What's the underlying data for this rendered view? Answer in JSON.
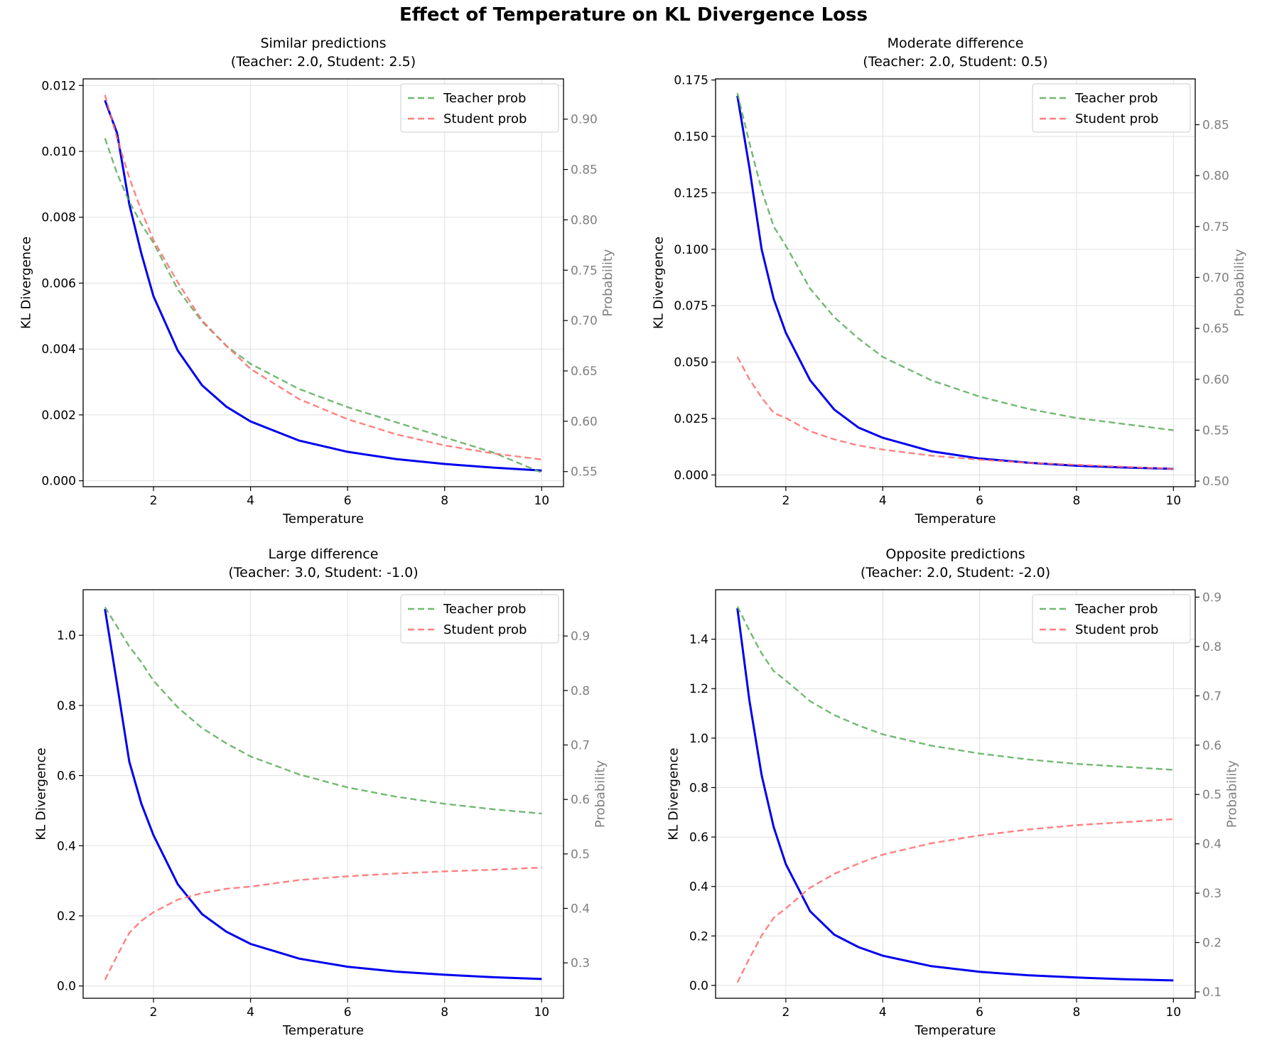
{
  "figure": {
    "suptitle": "Effect of Temperature on KL Divergence Loss"
  },
  "colors": {
    "kl": "#0000ee",
    "teacher": "#59ad59",
    "student": "#ff6b6b",
    "right_axis": "#808080",
    "grid": "#e0e0e0"
  },
  "chart_data": [
    {
      "type": "line",
      "title": "Similar predictions",
      "subtitle": "(Teacher: 2.0, Student: 2.5)",
      "xlabel": "Temperature",
      "ylabel": "KL Divergence",
      "ylabel2": "Probability",
      "xlim": [
        0.55,
        10.45
      ],
      "ylim": [
        -0.00018,
        0.0122
      ],
      "y2lim": [
        0.535,
        0.94
      ],
      "xticks": [
        2,
        4,
        6,
        8,
        10
      ],
      "yticks": [
        0.0,
        0.002,
        0.004,
        0.006,
        0.008,
        0.01,
        0.012
      ],
      "yticks_labels": [
        "0.000",
        "0.002",
        "0.004",
        "0.006",
        "0.008",
        "0.010",
        "0.012"
      ],
      "y2ticks": [
        0.55,
        0.6,
        0.65,
        0.7,
        0.75,
        0.8,
        0.85,
        0.9
      ],
      "y2ticks_labels": [
        "0.55",
        "0.60",
        "0.65",
        "0.70",
        "0.75",
        "0.80",
        "0.85",
        "0.90"
      ],
      "grid": true,
      "legend_position": "upper right",
      "legend_entries": [
        "Teacher prob",
        "Student prob"
      ],
      "series": [
        {
          "axis": "left",
          "style": "solid",
          "x": [
            1,
            1.25,
            1.5,
            1.75,
            2,
            2.5,
            3,
            3.5,
            4,
            5,
            6,
            7,
            8,
            9,
            10
          ],
          "values": [
            0.01155,
            0.01055,
            0.0084,
            0.0069,
            0.0056,
            0.00395,
            0.0029,
            0.00225,
            0.0018,
            0.00122,
            0.00088,
            0.00066,
            0.00051,
            0.0004,
            0.00031
          ]
        },
        {
          "name": "Teacher prob",
          "axis": "right",
          "style": "dashed",
          "x": [
            1,
            1.25,
            1.5,
            1.75,
            2,
            2.5,
            3,
            3.5,
            4,
            5,
            6,
            7,
            8,
            9,
            10
          ],
          "values": [
            0.881,
            0.846,
            0.818,
            0.796,
            0.777,
            0.731,
            0.699,
            0.675,
            0.657,
            0.632,
            0.614,
            0.599,
            0.584,
            0.569,
            0.549
          ]
        },
        {
          "name": "Student prob",
          "axis": "right",
          "style": "dashed",
          "x": [
            1,
            1.25,
            1.5,
            1.75,
            2,
            2.5,
            3,
            3.5,
            4,
            5,
            6,
            7,
            8,
            9,
            10
          ],
          "values": [
            0.924,
            0.881,
            0.842,
            0.809,
            0.78,
            0.738,
            0.7,
            0.675,
            0.652,
            0.622,
            0.602,
            0.587,
            0.576,
            0.568,
            0.562
          ]
        }
      ]
    },
    {
      "type": "line",
      "title": "Moderate difference",
      "subtitle": "(Teacher: 2.0, Student: 0.5)",
      "xlabel": "Temperature",
      "ylabel": "KL Divergence",
      "ylabel2": "Probability",
      "xlim": [
        0.55,
        10.45
      ],
      "ylim": [
        -0.0052,
        0.1755
      ],
      "y2lim": [
        0.4945,
        0.895
      ],
      "xticks": [
        2,
        4,
        6,
        8,
        10
      ],
      "yticks": [
        0.0,
        0.025,
        0.05,
        0.075,
        0.1,
        0.125,
        0.15,
        0.175
      ],
      "yticks_labels": [
        "0.000",
        "0.025",
        "0.050",
        "0.075",
        "0.100",
        "0.125",
        "0.150",
        "0.175"
      ],
      "y2ticks": [
        0.5,
        0.55,
        0.6,
        0.65,
        0.7,
        0.75,
        0.8,
        0.85
      ],
      "y2ticks_labels": [
        "0.50",
        "0.55",
        "0.60",
        "0.65",
        "0.70",
        "0.75",
        "0.80",
        "0.85"
      ],
      "grid": true,
      "legend_position": "upper right",
      "legend_entries": [
        "Teacher prob",
        "Student prob"
      ],
      "series": [
        {
          "axis": "left",
          "style": "solid",
          "x": [
            1,
            1.25,
            1.5,
            1.75,
            2,
            2.5,
            3,
            3.5,
            4,
            5,
            6,
            7,
            8,
            9,
            10
          ],
          "values": [
            0.168,
            0.136,
            0.1,
            0.078,
            0.063,
            0.042,
            0.029,
            0.021,
            0.0165,
            0.0105,
            0.0073,
            0.0054,
            0.0041,
            0.0033,
            0.0027
          ]
        },
        {
          "name": "Teacher prob",
          "axis": "right",
          "style": "dashed",
          "x": [
            1,
            1.25,
            1.5,
            1.75,
            2,
            2.5,
            3,
            3.5,
            4,
            5,
            6,
            7,
            8,
            9,
            10
          ],
          "values": [
            0.881,
            0.832,
            0.786,
            0.75,
            0.731,
            0.689,
            0.661,
            0.64,
            0.622,
            0.599,
            0.583,
            0.571,
            0.562,
            0.556,
            0.55
          ]
        },
        {
          "name": "Student prob",
          "axis": "right",
          "style": "dashed",
          "x": [
            1,
            1.25,
            1.5,
            1.75,
            2,
            2.5,
            3,
            3.5,
            4,
            5,
            6,
            7,
            8,
            9,
            10
          ],
          "values": [
            0.622,
            0.6,
            0.582,
            0.567,
            0.562,
            0.549,
            0.541,
            0.535,
            0.531,
            0.525,
            0.521,
            0.518,
            0.516,
            0.514,
            0.512
          ]
        }
      ]
    },
    {
      "type": "line",
      "title": "Large difference",
      "subtitle": "(Teacher: 3.0, Student: -1.0)",
      "xlabel": "Temperature",
      "ylabel": "KL Divergence",
      "ylabel2": "Probability",
      "xlim": [
        0.55,
        10.45
      ],
      "ylim": [
        -0.035,
        1.13
      ],
      "y2lim": [
        0.235,
        0.985
      ],
      "xticks": [
        2,
        4,
        6,
        8,
        10
      ],
      "yticks": [
        0.0,
        0.2,
        0.4,
        0.6,
        0.8,
        1.0
      ],
      "yticks_labels": [
        "0.0",
        "0.2",
        "0.4",
        "0.6",
        "0.8",
        "1.0"
      ],
      "y2ticks": [
        0.3,
        0.4,
        0.5,
        0.6,
        0.7,
        0.8,
        0.9
      ],
      "y2ticks_labels": [
        "0.3",
        "0.4",
        "0.5",
        "0.6",
        "0.7",
        "0.8",
        "0.9"
      ],
      "grid": true,
      "legend_position": "upper right",
      "legend_entries": [
        "Teacher prob",
        "Student prob"
      ],
      "series": [
        {
          "axis": "left",
          "style": "solid",
          "x": [
            1,
            1.25,
            1.5,
            1.75,
            2,
            2.5,
            3,
            3.5,
            4,
            5,
            6,
            7,
            8,
            9,
            10
          ],
          "values": [
            1.075,
            0.86,
            0.64,
            0.52,
            0.43,
            0.29,
            0.205,
            0.155,
            0.12,
            0.078,
            0.055,
            0.041,
            0.032,
            0.025,
            0.02
          ]
        },
        {
          "name": "Teacher prob",
          "axis": "right",
          "style": "dashed",
          "x": [
            1,
            1.25,
            1.5,
            1.75,
            2,
            2.5,
            3,
            3.5,
            4,
            5,
            6,
            7,
            8,
            9,
            10
          ],
          "values": [
            0.953,
            0.917,
            0.881,
            0.852,
            0.818,
            0.769,
            0.731,
            0.703,
            0.679,
            0.646,
            0.622,
            0.605,
            0.592,
            0.582,
            0.574
          ]
        },
        {
          "name": "Student prob",
          "axis": "right",
          "style": "dashed",
          "x": [
            1,
            1.25,
            1.5,
            1.75,
            2,
            2.5,
            3,
            3.5,
            4,
            5,
            6,
            7,
            8,
            9,
            10
          ],
          "values": [
            0.269,
            0.313,
            0.355,
            0.377,
            0.393,
            0.416,
            0.428,
            0.436,
            0.44,
            0.452,
            0.459,
            0.464,
            0.468,
            0.471,
            0.475
          ]
        }
      ]
    },
    {
      "type": "line",
      "title": "Opposite predictions",
      "subtitle": "(Teacher: 2.0, Student: -2.0)",
      "xlabel": "Temperature",
      "ylabel": "KL Divergence",
      "ylabel2": "Probability",
      "xlim": [
        0.55,
        10.45
      ],
      "ylim": [
        -0.052,
        1.6
      ],
      "y2lim": [
        0.087,
        0.915
      ],
      "xticks": [
        2,
        4,
        6,
        8,
        10
      ],
      "yticks": [
        0.0,
        0.2,
        0.4,
        0.6,
        0.8,
        1.0,
        1.2,
        1.4
      ],
      "yticks_labels": [
        "0.0",
        "0.2",
        "0.4",
        "0.6",
        "0.8",
        "1.0",
        "1.2",
        "1.4"
      ],
      "y2ticks": [
        0.1,
        0.2,
        0.3,
        0.4,
        0.5,
        0.6,
        0.7,
        0.8,
        0.9
      ],
      "y2ticks_labels": [
        "0.1",
        "0.2",
        "0.3",
        "0.4",
        "0.5",
        "0.6",
        "0.7",
        "0.8",
        "0.9"
      ],
      "grid": true,
      "legend_position": "upper right",
      "legend_entries": [
        "Teacher prob",
        "Student prob"
      ],
      "series": [
        {
          "axis": "left",
          "style": "solid",
          "x": [
            1,
            1.25,
            1.5,
            1.75,
            2,
            2.5,
            3,
            3.5,
            4,
            5,
            6,
            7,
            8,
            9,
            10
          ],
          "values": [
            1.525,
            1.15,
            0.85,
            0.64,
            0.49,
            0.3,
            0.205,
            0.155,
            0.12,
            0.078,
            0.055,
            0.041,
            0.032,
            0.025,
            0.02
          ]
        },
        {
          "name": "Teacher prob",
          "axis": "right",
          "style": "dashed",
          "x": [
            1,
            1.25,
            1.5,
            1.75,
            2,
            2.5,
            3,
            3.5,
            4,
            5,
            6,
            7,
            8,
            9,
            10
          ],
          "values": [
            0.881,
            0.832,
            0.786,
            0.75,
            0.731,
            0.689,
            0.661,
            0.64,
            0.622,
            0.599,
            0.583,
            0.571,
            0.562,
            0.556,
            0.55
          ]
        },
        {
          "name": "Student prob",
          "axis": "right",
          "style": "dashed",
          "x": [
            1,
            1.25,
            1.5,
            1.75,
            2,
            2.5,
            3,
            3.5,
            4,
            5,
            6,
            7,
            8,
            9,
            10
          ],
          "values": [
            0.119,
            0.168,
            0.214,
            0.25,
            0.269,
            0.311,
            0.339,
            0.36,
            0.378,
            0.401,
            0.417,
            0.429,
            0.438,
            0.444,
            0.45
          ]
        }
      ]
    }
  ]
}
